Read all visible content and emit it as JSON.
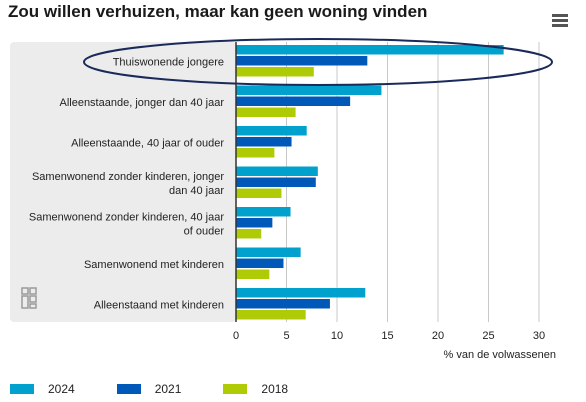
{
  "title": "Zou willen verhuizen, maar kan geen woning vinden",
  "menu_icon": "hamburger-menu-icon",
  "logo_icon": "cbs-logo-icon",
  "colors": {
    "panel": "#ececec",
    "axis": "#333333",
    "grid": "#c8c8c8",
    "highlight_ellipse": "#1a2a5a"
  },
  "chart_data": {
    "type": "bar",
    "orientation": "horizontal",
    "title": "Zou willen verhuizen, maar kan geen woning vinden",
    "xlabel": "% van de volwassenen",
    "xlim": [
      0,
      30
    ],
    "xticks": [
      0,
      5,
      10,
      15,
      20,
      25,
      30
    ],
    "grid": true,
    "legend_position": "bottom-left",
    "categories": [
      [
        "Thuiswonende jongere"
      ],
      [
        "Alleenstaande, jonger dan 40 jaar"
      ],
      [
        "Alleenstaande, 40 jaar of ouder"
      ],
      [
        "Samenwonend zonder kinderen, jonger",
        "dan 40 jaar"
      ],
      [
        "Samenwonend zonder kinderen, 40 jaar",
        "of ouder"
      ],
      [
        "Samenwonend met kinderen"
      ],
      [
        "Alleenstaand met kinderen"
      ]
    ],
    "series": [
      {
        "name": "2024",
        "color": "#00a1cd",
        "values": [
          26.5,
          14.4,
          7.0,
          8.1,
          5.4,
          6.4,
          12.8
        ]
      },
      {
        "name": "2021",
        "color": "#0058b8",
        "values": [
          13.0,
          11.3,
          5.5,
          7.9,
          3.6,
          4.7,
          9.3
        ]
      },
      {
        "name": "2018",
        "color": "#afcb05",
        "values": [
          7.7,
          5.9,
          3.8,
          4.5,
          2.5,
          3.3,
          6.9
        ]
      }
    ],
    "highlighted_category": "Thuiswonende jongere"
  }
}
